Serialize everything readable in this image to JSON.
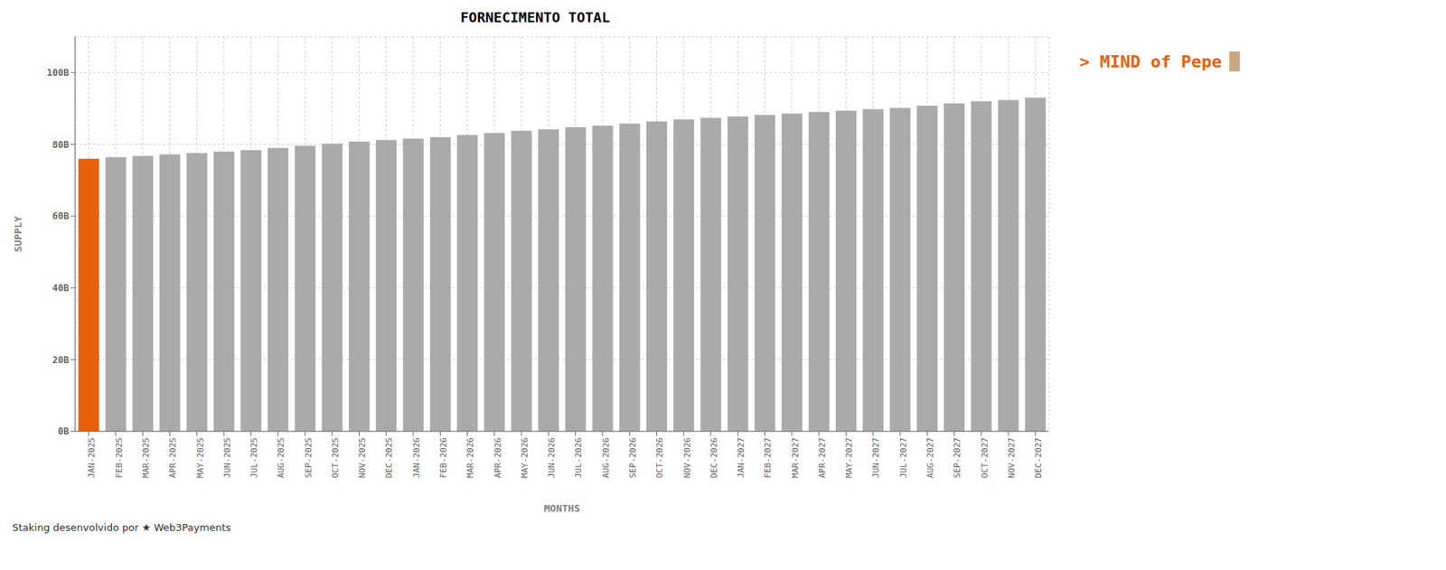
{
  "chart_data": {
    "type": "bar",
    "title": "FORNECIMENTO TOTAL",
    "xlabel": "MONTHS",
    "ylabel": "SUPPLY",
    "categories": [
      "JAN-2025",
      "FEB-2025",
      "MAR-2025",
      "APR-2025",
      "MAY-2025",
      "JUN-2025",
      "JUL-2025",
      "AUG-2025",
      "SEP-2025",
      "OCT-2025",
      "NOV-2025",
      "DEC-2025",
      "JAN-2026",
      "FEB-2026",
      "MAR-2026",
      "APR-2026",
      "MAY-2026",
      "JUN-2026",
      "JUL-2026",
      "AUG-2026",
      "SEP-2026",
      "OCT-2026",
      "NOV-2026",
      "DEC-2026",
      "JAN-2027",
      "FEB-2027",
      "MAR-2027",
      "APR-2027",
      "MAY-2027",
      "JUN-2027",
      "JUL-2027",
      "AUG-2027",
      "SEP-2027",
      "OCT-2027",
      "NOV-2027",
      "DEC-2027"
    ],
    "values": [
      76000000000,
      76400000000,
      76800000000,
      77200000000,
      77600000000,
      78000000000,
      78400000000,
      79000000000,
      79600000000,
      80200000000,
      80800000000,
      81200000000,
      81600000000,
      82000000000,
      82600000000,
      83200000000,
      83800000000,
      84200000000,
      84800000000,
      85200000000,
      85800000000,
      86400000000,
      87000000000,
      87400000000,
      87800000000,
      88200000000,
      88600000000,
      89000000000,
      89400000000,
      89800000000,
      90200000000,
      90800000000,
      91400000000,
      92000000000,
      92400000000,
      93000000000
    ],
    "colors": [
      "#e8600a",
      "#aaaaaa",
      "#aaaaaa",
      "#aaaaaa",
      "#aaaaaa",
      "#aaaaaa",
      "#aaaaaa",
      "#aaaaaa",
      "#aaaaaa",
      "#aaaaaa",
      "#aaaaaa",
      "#aaaaaa",
      "#aaaaaa",
      "#aaaaaa",
      "#aaaaaa",
      "#aaaaaa",
      "#aaaaaa",
      "#aaaaaa",
      "#aaaaaa",
      "#aaaaaa",
      "#aaaaaa",
      "#aaaaaa",
      "#aaaaaa",
      "#aaaaaa",
      "#aaaaaa",
      "#aaaaaa",
      "#aaaaaa",
      "#aaaaaa",
      "#aaaaaa",
      "#aaaaaa",
      "#aaaaaa",
      "#aaaaaa",
      "#aaaaaa",
      "#aaaaaa",
      "#aaaaaa",
      "#aaaaaa"
    ],
    "ylim": [
      0,
      110000000000
    ],
    "yticks": [
      {
        "value": 0,
        "label": "0B"
      },
      {
        "value": 20000000000,
        "label": "20B"
      },
      {
        "value": 40000000000,
        "label": "40B"
      },
      {
        "value": 60000000000,
        "label": "60B"
      },
      {
        "value": 80000000000,
        "label": "80B"
      },
      {
        "value": 100000000000,
        "label": "100B"
      }
    ],
    "grid": true,
    "annotations": [
      {
        "text": "> MIND of Pepe",
        "color": "#e8600a"
      },
      {
        "text": "█",
        "color": "#c8a882"
      },
      {
        "text": "Staking desenvolvido por ★ Web3Payments",
        "color": "#333333"
      }
    ]
  }
}
